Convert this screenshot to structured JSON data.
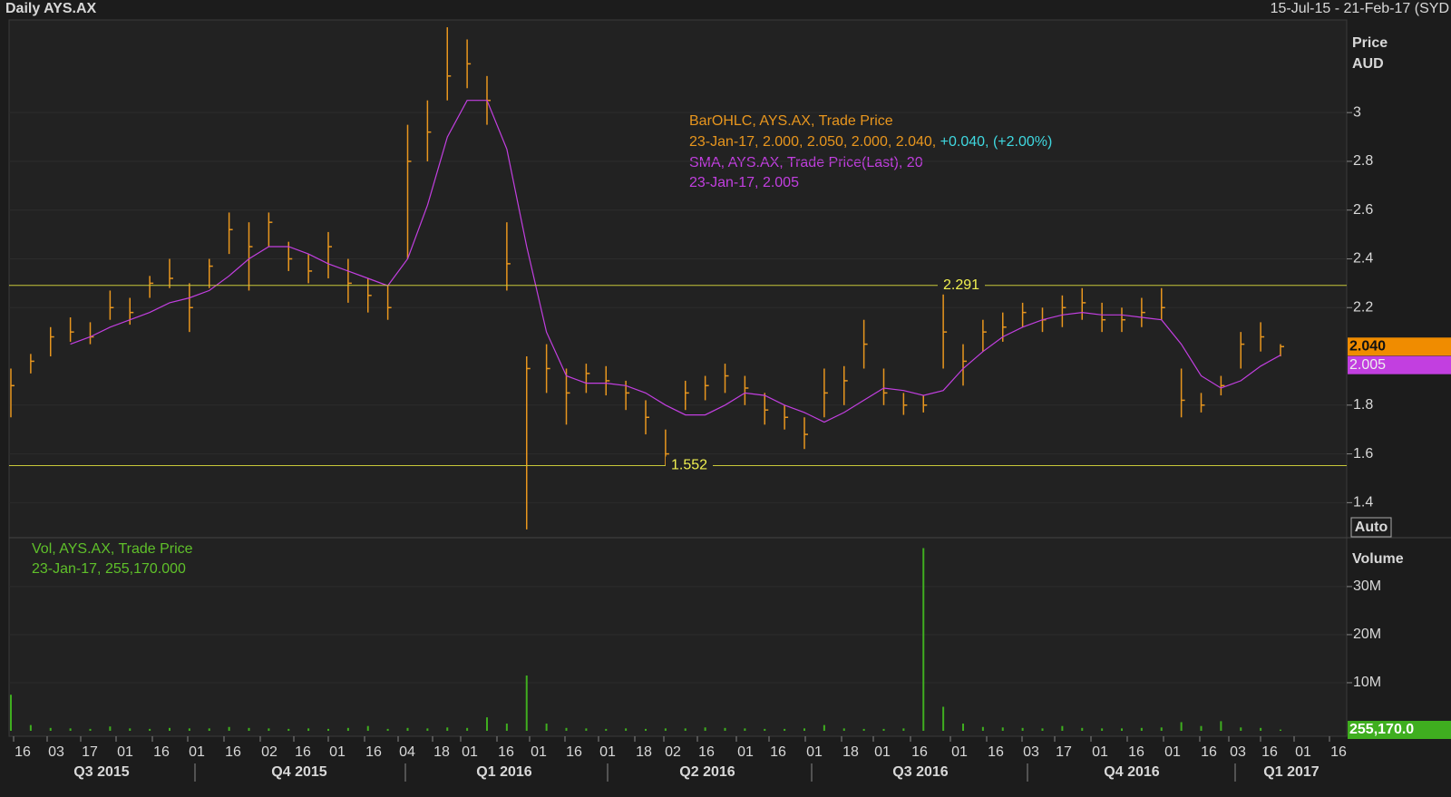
{
  "header": {
    "title": "Daily AYS.AX",
    "range": "15-Jul-15 - 21-Feb-17 (SYD"
  },
  "chart_data": [
    {
      "type": "ohlc",
      "axis_label": "Price",
      "axis_unit": "AUD",
      "autoscale": "Auto",
      "legend": {
        "ohlc_name": "BarOHLC, AYS.AX, Trade Price",
        "ohlc_values": "23-Jan-17, 2.000, 2.050, 2.000, 2.040,",
        "ohlc_change": "+0.040, (+2.00%)",
        "sma_name": "SMA, AYS.AX, Trade Price(Last),  20",
        "sma_values": "23-Jan-17, 2.005"
      },
      "high": [
        1.95,
        2.01,
        2.12,
        2.16,
        2.14,
        2.27,
        2.24,
        2.33,
        2.4,
        2.3,
        2.4,
        2.59,
        2.55,
        2.59,
        2.47,
        2.42,
        2.51,
        2.4,
        2.32,
        2.29,
        2.95,
        3.05,
        3.35,
        3.3,
        3.15,
        2.55,
        2.0,
        2.05,
        1.95,
        1.97,
        1.96,
        1.9,
        1.82,
        1.7,
        1.9,
        1.92,
        1.97,
        1.92,
        1.85,
        1.8,
        1.75,
        1.95,
        1.96,
        2.15,
        1.95,
        1.85,
        1.84,
        2.26,
        2.05,
        2.15,
        2.18,
        2.22,
        2.2,
        2.25,
        2.28,
        2.22,
        2.2,
        2.24,
        2.28,
        1.95,
        1.85,
        1.92,
        2.1,
        2.14,
        2.05
      ],
      "low": [
        1.75,
        1.93,
        2.0,
        2.06,
        2.05,
        2.15,
        2.13,
        2.24,
        2.28,
        2.1,
        2.28,
        2.42,
        2.27,
        2.45,
        2.35,
        2.3,
        2.32,
        2.22,
        2.18,
        2.15,
        2.4,
        2.8,
        3.05,
        3.1,
        2.95,
        2.27,
        1.29,
        1.85,
        1.72,
        1.85,
        1.84,
        1.78,
        1.68,
        1.55,
        1.78,
        1.82,
        1.85,
        1.8,
        1.72,
        1.7,
        1.62,
        1.75,
        1.8,
        1.95,
        1.8,
        1.76,
        1.77,
        1.95,
        1.88,
        2.02,
        2.06,
        2.12,
        2.1,
        2.12,
        2.15,
        2.1,
        2.1,
        2.12,
        2.15,
        1.75,
        1.77,
        1.84,
        1.95,
        2.02,
        2.0
      ],
      "close": [
        1.88,
        1.98,
        2.08,
        2.1,
        2.08,
        2.2,
        2.18,
        2.3,
        2.32,
        2.2,
        2.37,
        2.52,
        2.45,
        2.55,
        2.4,
        2.35,
        2.45,
        2.3,
        2.25,
        2.2,
        2.8,
        2.92,
        3.15,
        3.2,
        3.05,
        2.38,
        1.95,
        1.95,
        1.85,
        1.93,
        1.9,
        1.85,
        1.75,
        1.6,
        1.85,
        1.88,
        1.92,
        1.87,
        1.78,
        1.75,
        1.68,
        1.85,
        1.9,
        2.05,
        1.85,
        1.8,
        1.8,
        2.1,
        1.98,
        2.1,
        2.12,
        2.18,
        2.15,
        2.2,
        2.22,
        2.15,
        2.15,
        2.18,
        2.2,
        1.82,
        1.8,
        1.88,
        2.05,
        2.08,
        2.04
      ],
      "color": "#e8961e",
      "sma": {
        "color": "#c23fe0",
        "values": [
          null,
          null,
          null,
          2.05,
          2.08,
          2.12,
          2.15,
          2.18,
          2.22,
          2.24,
          2.27,
          2.33,
          2.4,
          2.45,
          2.45,
          2.42,
          2.38,
          2.35,
          2.32,
          2.29,
          2.4,
          2.62,
          2.9,
          3.05,
          3.05,
          2.85,
          2.45,
          2.1,
          1.92,
          1.89,
          1.89,
          1.88,
          1.85,
          1.8,
          1.76,
          1.76,
          1.8,
          1.85,
          1.84,
          1.8,
          1.77,
          1.73,
          1.77,
          1.82,
          1.87,
          1.86,
          1.84,
          1.86,
          1.95,
          2.02,
          2.08,
          2.12,
          2.15,
          2.17,
          2.18,
          2.17,
          2.17,
          2.16,
          2.15,
          2.05,
          1.92,
          1.87,
          1.9,
          1.96,
          2.005
        ]
      },
      "ylim": [
        1.26,
        3.38
      ],
      "yticks": [
        1.4,
        1.6,
        1.8,
        2.2,
        2.4,
        2.6,
        2.8,
        3
      ],
      "hlines": [
        2.291,
        1.552
      ],
      "hline_color": "#c8c83a",
      "last_tags": [
        "2.040",
        "2.005"
      ]
    },
    {
      "type": "bar",
      "title": "Vol, AYS.AX, Trade Price",
      "subtitle": "23-Jan-17, 255,170.000",
      "axis_label": "Volume",
      "values": [
        7500000,
        1200000,
        600000,
        500000,
        400000,
        900000,
        500000,
        400000,
        600000,
        500000,
        500000,
        800000,
        600000,
        500000,
        400000,
        500000,
        400000,
        600000,
        1000000,
        400000,
        600000,
        500000,
        700000,
        600000,
        2800000,
        1500000,
        11500000,
        1500000,
        600000,
        500000,
        400000,
        500000,
        400000,
        500000,
        500000,
        700000,
        600000,
        500000,
        400000,
        400000,
        500000,
        1200000,
        500000,
        400000,
        400000,
        500000,
        38000000,
        5000000,
        1500000,
        800000,
        700000,
        600000,
        500000,
        1000000,
        600000,
        500000,
        500000,
        600000,
        700000,
        1800000,
        1000000,
        2000000,
        700000,
        600000,
        255170
      ],
      "color": "#3fae1f",
      "ylim": [
        0,
        39600000
      ],
      "yticks": [
        {
          "value": 10000000,
          "label": "10M"
        },
        {
          "value": 20000000,
          "label": "20M"
        },
        {
          "value": 30000000,
          "label": "30M"
        }
      ],
      "last_tag": "255,170.0",
      "x_labels": [
        "16",
        "03",
        "17",
        "01",
        "16",
        "01",
        "16",
        "02",
        "16",
        "01",
        "16",
        "04",
        "18",
        "01",
        "16",
        "01",
        "16",
        "01",
        "18",
        "02",
        "16",
        "01",
        "16",
        "01",
        "18",
        "01",
        "16",
        "01",
        "16",
        "03",
        "17",
        "01",
        "16",
        "01",
        "16",
        "03",
        "16",
        "01",
        "16"
      ],
      "quarters": [
        "Q3 2015",
        "Q4 2015",
        "Q1 2016",
        "Q2 2016",
        "Q3 2016",
        "Q4 2016",
        "Q1 2017"
      ]
    }
  ]
}
